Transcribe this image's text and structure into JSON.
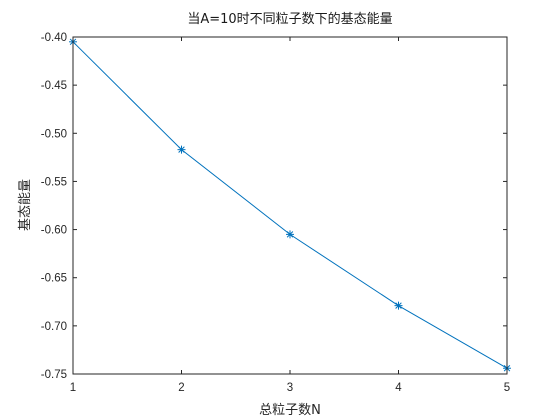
{
  "chart_data": {
    "type": "line",
    "title": "当A=10时不同粒子数下的基态能量",
    "xlabel": "总粒子数N",
    "ylabel": "基态能量",
    "x": [
      1,
      2,
      3,
      4,
      5
    ],
    "series": [
      {
        "values": [
          -0.405,
          -0.517,
          -0.605,
          -0.679,
          -0.744
        ]
      }
    ],
    "xlim": [
      1,
      5
    ],
    "ylim": [
      -0.75,
      -0.4
    ],
    "xticks": [
      1,
      2,
      3,
      4,
      5
    ],
    "yticks": [
      -0.4,
      -0.45,
      -0.5,
      -0.55,
      -0.6,
      -0.65,
      -0.7,
      -0.75
    ],
    "xtick_labels": [
      "1",
      "2",
      "3",
      "4",
      "5"
    ],
    "ytick_labels": [
      "-0.40",
      "-0.45",
      "-0.50",
      "-0.55",
      "-0.60",
      "-0.65",
      "-0.70",
      "-0.75"
    ],
    "grid": false,
    "line_color": "#0072BD",
    "marker": "asterisk"
  }
}
